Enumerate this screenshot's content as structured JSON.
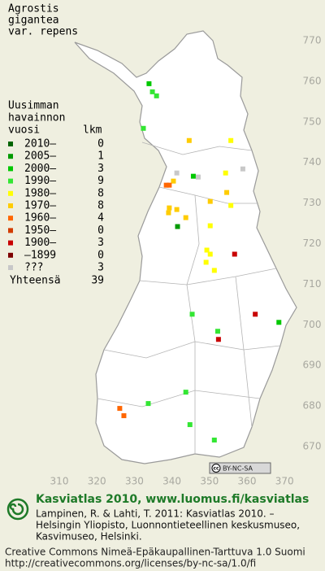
{
  "title": [
    "Agrostis",
    "gigantea",
    "var. repens"
  ],
  "legend": {
    "header": [
      "Uusimman",
      "havainnon",
      "vuosi"
    ],
    "count_header": "lkm",
    "rows": [
      {
        "label": "2010–",
        "count": 0,
        "color": "#006400",
        "points": []
      },
      {
        "label": "2005–",
        "count": 1,
        "color": "#009a00",
        "points": [
          [
            341.5,
            724.2
          ]
        ]
      },
      {
        "label": "2000–",
        "count": 3,
        "color": "#00c800",
        "points": [
          [
            333.9,
            759.4
          ],
          [
            345.7,
            736.6
          ],
          [
            368.5,
            700.6
          ]
        ]
      },
      {
        "label": "1990–",
        "count": 9,
        "color": "#33e633",
        "points": [
          [
            334.8,
            757.4
          ],
          [
            335.9,
            756.4
          ],
          [
            332.4,
            748.4
          ],
          [
            345.4,
            702.6
          ],
          [
            352.2,
            698.4
          ],
          [
            333.7,
            680.6
          ],
          [
            343.7,
            683.4
          ],
          [
            344.8,
            675.4
          ],
          [
            351.3,
            671.6
          ]
        ]
      },
      {
        "label": "1980–",
        "count": 8,
        "color": "#ffff00",
        "points": [
          [
            355.7,
            745.4
          ],
          [
            354.3,
            737.4
          ],
          [
            350.2,
            724.4
          ],
          [
            349.3,
            718.4
          ],
          [
            350.2,
            717.4
          ],
          [
            349.1,
            715.4
          ],
          [
            351.3,
            713.4
          ],
          [
            355.7,
            729.4
          ]
        ]
      },
      {
        "label": "1970–",
        "count": 8,
        "color": "#ffcc00",
        "points": [
          [
            344.6,
            745.4
          ],
          [
            340.4,
            735.4
          ],
          [
            354.6,
            732.6
          ],
          [
            339.3,
            728.8
          ],
          [
            341.3,
            728.4
          ],
          [
            343.7,
            726.4
          ],
          [
            350.2,
            730.4
          ],
          [
            339.1,
            727.6
          ]
        ]
      },
      {
        "label": "1960–",
        "count": 4,
        "color": "#ff6600",
        "points": [
          [
            338.5,
            734.4
          ],
          [
            339.3,
            734.4
          ],
          [
            326.1,
            679.4
          ],
          [
            327.2,
            677.6
          ]
        ]
      },
      {
        "label": "1950–",
        "count": 0,
        "color": "#d23c00",
        "points": []
      },
      {
        "label": "1900–",
        "count": 3,
        "color": "#c80000",
        "points": [
          [
            356.7,
            717.4
          ],
          [
            362.2,
            702.6
          ],
          [
            352.4,
            696.4
          ]
        ]
      },
      {
        "label": "–1899",
        "count": 0,
        "color": "#7d0000",
        "points": []
      },
      {
        "label": "???",
        "count": 3,
        "color": "#c8c8c8",
        "points": [
          [
            341.3,
            737.4
          ],
          [
            347.0,
            736.4
          ],
          [
            358.9,
            738.4
          ]
        ]
      }
    ],
    "total": {
      "label": "Yhteensä",
      "count": 39
    }
  },
  "grid": {
    "xticks": [
      310,
      320,
      330,
      340,
      350,
      360,
      370
    ],
    "yticks": [
      770,
      760,
      750,
      740,
      730,
      720,
      710,
      700,
      690,
      680,
      670
    ]
  },
  "license_badge": {
    "icon": "cc",
    "text": "BY-NC-SA"
  },
  "footer": {
    "heading": "Kasviatlas 2010, www.luomus.fi/kasviatlas",
    "citation": [
      "Lampinen, R. & Lahti, T. 2011: Kasviatlas 2010. –",
      "Helsingin Yliopisto, Luonnontieteellinen keskusmuseo,",
      "Kasvimuseo, Helsinki."
    ],
    "license": [
      "Creative Commons Nimeä-Epäkaupallinen-Tarttuva 1.0 Suomi",
      "http://creativecommons.org/licenses/by-nc-sa/1.0/fi"
    ]
  }
}
